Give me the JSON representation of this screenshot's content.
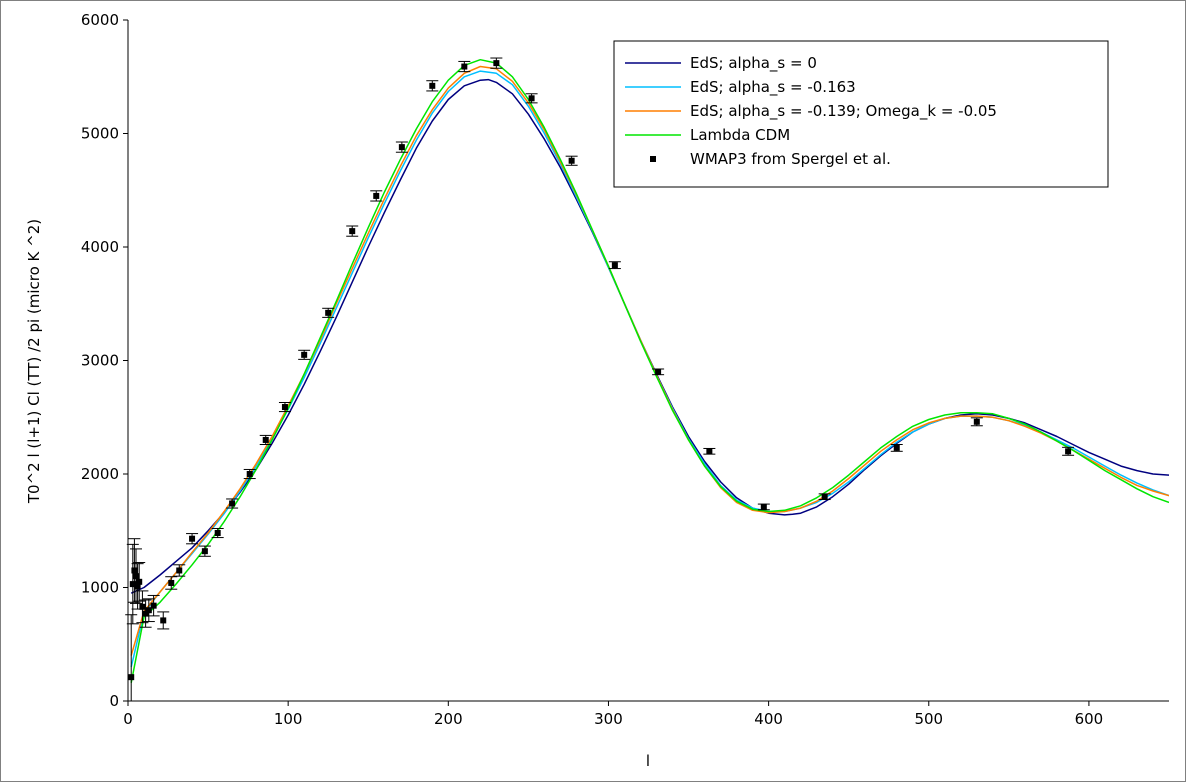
{
  "chart_data": {
    "type": "line",
    "title": "",
    "xlabel": "l",
    "ylabel": "T0^2 l (l+1) Cl (TT) /2 pi (micro K ^2)",
    "xlim": [
      0,
      650
    ],
    "ylim": [
      0,
      6000
    ],
    "xticks": [
      0,
      100,
      200,
      300,
      400,
      500,
      600
    ],
    "yticks": [
      0,
      1000,
      2000,
      3000,
      4000,
      5000,
      6000
    ],
    "grid": false,
    "legend_position": "top-right",
    "series": [
      {
        "name": "EdS; alpha_s = 0",
        "color": "#000080",
        "x": [
          2,
          10,
          20,
          30,
          40,
          50,
          60,
          70,
          80,
          90,
          100,
          110,
          120,
          130,
          140,
          150,
          160,
          170,
          180,
          190,
          200,
          210,
          220,
          225,
          230,
          240,
          250,
          260,
          270,
          280,
          290,
          300,
          310,
          320,
          330,
          340,
          350,
          360,
          370,
          380,
          390,
          400,
          410,
          415,
          420,
          430,
          440,
          450,
          460,
          470,
          480,
          490,
          500,
          510,
          520,
          530,
          540,
          550,
          560,
          570,
          580,
          590,
          600,
          610,
          620,
          630,
          640,
          650
        ],
        "y": [
          950,
          1000,
          1110,
          1230,
          1350,
          1500,
          1660,
          1840,
          2040,
          2270,
          2520,
          2790,
          3080,
          3380,
          3690,
          4000,
          4300,
          4590,
          4870,
          5110,
          5300,
          5420,
          5470,
          5475,
          5450,
          5350,
          5170,
          4950,
          4700,
          4420,
          4130,
          3820,
          3500,
          3180,
          2880,
          2590,
          2330,
          2110,
          1930,
          1790,
          1700,
          1655,
          1640,
          1645,
          1655,
          1710,
          1800,
          1910,
          2040,
          2160,
          2270,
          2370,
          2440,
          2490,
          2520,
          2530,
          2520,
          2490,
          2450,
          2390,
          2330,
          2260,
          2190,
          2130,
          2070,
          2030,
          2000,
          1990
        ]
      },
      {
        "name": "EdS; alpha_s = -0.163",
        "color": "#00bfff",
        "x": [
          2,
          10,
          20,
          30,
          40,
          50,
          60,
          70,
          80,
          90,
          100,
          110,
          120,
          130,
          140,
          150,
          160,
          170,
          180,
          190,
          200,
          210,
          220,
          230,
          240,
          250,
          260,
          270,
          280,
          290,
          300,
          310,
          320,
          330,
          340,
          350,
          360,
          370,
          380,
          390,
          400,
          410,
          420,
          430,
          440,
          450,
          460,
          470,
          480,
          490,
          500,
          510,
          520,
          530,
          540,
          550,
          560,
          570,
          580,
          590,
          600,
          610,
          620,
          630,
          640,
          650
        ],
        "y": [
          300,
          780,
          960,
          1130,
          1300,
          1470,
          1650,
          1850,
          2070,
          2310,
          2570,
          2850,
          3150,
          3460,
          3770,
          4080,
          4380,
          4670,
          4940,
          5180,
          5370,
          5500,
          5550,
          5530,
          5430,
          5240,
          5000,
          4730,
          4440,
          4140,
          3820,
          3500,
          3180,
          2870,
          2580,
          2310,
          2090,
          1900,
          1770,
          1700,
          1670,
          1670,
          1700,
          1750,
          1830,
          1930,
          2050,
          2170,
          2280,
          2370,
          2440,
          2490,
          2510,
          2510,
          2500,
          2470,
          2430,
          2370,
          2300,
          2230,
          2150,
          2070,
          1990,
          1920,
          1860,
          1810
        ]
      },
      {
        "name": "EdS; alpha_s = -0.139; Omega_k = -0.05",
        "color": "#ff7f00",
        "x": [
          2,
          10,
          20,
          30,
          40,
          50,
          60,
          70,
          80,
          90,
          100,
          110,
          120,
          130,
          140,
          150,
          160,
          170,
          180,
          190,
          200,
          210,
          220,
          230,
          240,
          250,
          260,
          270,
          280,
          290,
          300,
          310,
          320,
          330,
          340,
          350,
          360,
          370,
          380,
          390,
          400,
          410,
          420,
          430,
          440,
          450,
          460,
          470,
          480,
          490,
          500,
          510,
          520,
          530,
          540,
          550,
          560,
          570,
          580,
          590,
          600,
          610,
          620,
          630,
          640,
          650
        ],
        "y": [
          400,
          790,
          960,
          1130,
          1310,
          1480,
          1670,
          1870,
          2090,
          2330,
          2600,
          2880,
          3180,
          3500,
          3810,
          4120,
          4420,
          4710,
          4980,
          5210,
          5400,
          5530,
          5590,
          5570,
          5460,
          5270,
          5030,
          4750,
          4460,
          4150,
          3830,
          3500,
          3180,
          2870,
          2570,
          2300,
          2070,
          1880,
          1750,
          1680,
          1660,
          1670,
          1700,
          1760,
          1850,
          1960,
          2080,
          2200,
          2300,
          2390,
          2450,
          2490,
          2510,
          2510,
          2500,
          2470,
          2420,
          2360,
          2290,
          2210,
          2130,
          2050,
          1970,
          1900,
          1850,
          1810
        ]
      },
      {
        "name": "Lambda CDM",
        "color": "#00e600",
        "x": [
          2,
          10,
          20,
          30,
          40,
          50,
          60,
          70,
          80,
          90,
          100,
          110,
          120,
          130,
          140,
          150,
          160,
          170,
          180,
          190,
          200,
          210,
          220,
          230,
          240,
          250,
          260,
          270,
          280,
          290,
          300,
          310,
          320,
          330,
          340,
          350,
          360,
          370,
          380,
          390,
          400,
          410,
          420,
          430,
          440,
          450,
          460,
          470,
          480,
          490,
          500,
          510,
          520,
          530,
          540,
          550,
          560,
          570,
          580,
          590,
          600,
          610,
          620,
          630,
          640,
          650
        ],
        "y": [
          160,
          740,
          870,
          1030,
          1200,
          1380,
          1580,
          1800,
          2040,
          2300,
          2580,
          2880,
          3200,
          3520,
          3850,
          4170,
          4480,
          4770,
          5040,
          5280,
          5470,
          5600,
          5650,
          5620,
          5500,
          5300,
          5050,
          4770,
          4470,
          4150,
          3830,
          3500,
          3170,
          2860,
          2560,
          2300,
          2070,
          1890,
          1760,
          1690,
          1670,
          1680,
          1720,
          1790,
          1880,
          1990,
          2110,
          2230,
          2330,
          2420,
          2480,
          2520,
          2540,
          2540,
          2530,
          2490,
          2440,
          2370,
          2290,
          2210,
          2120,
          2030,
          1950,
          1870,
          1800,
          1750
        ]
      }
    ],
    "points": {
      "name": "WMAP3 from Spergel et al.",
      "color": "#000000",
      "x": [
        2,
        3,
        4,
        5,
        6,
        7,
        9,
        11,
        13,
        16,
        22,
        27,
        32,
        40,
        48,
        56,
        65,
        76,
        86,
        98,
        110,
        125,
        140,
        155,
        171,
        190,
        210,
        230,
        252,
        277,
        304,
        331,
        363,
        397,
        435,
        480,
        530,
        587
      ],
      "y": [
        210,
        1030,
        1150,
        1100,
        1010,
        1050,
        830,
        770,
        800,
        840,
        710,
        1040,
        1150,
        1430,
        1320,
        1480,
        1740,
        2000,
        2300,
        2590,
        3050,
        3420,
        4140,
        4450,
        4880,
        5420,
        5590,
        5620,
        5310,
        4760,
        3840,
        2900,
        2200,
        1710,
        1800,
        2230,
        2460,
        2200
      ],
      "err": [
        550,
        350,
        280,
        240,
        200,
        170,
        140,
        120,
        100,
        90,
        75,
        55,
        50,
        45,
        45,
        40,
        40,
        40,
        40,
        40,
        40,
        40,
        45,
        45,
        45,
        45,
        45,
        45,
        40,
        40,
        30,
        25,
        25,
        25,
        25,
        30,
        35,
        35
      ]
    }
  }
}
